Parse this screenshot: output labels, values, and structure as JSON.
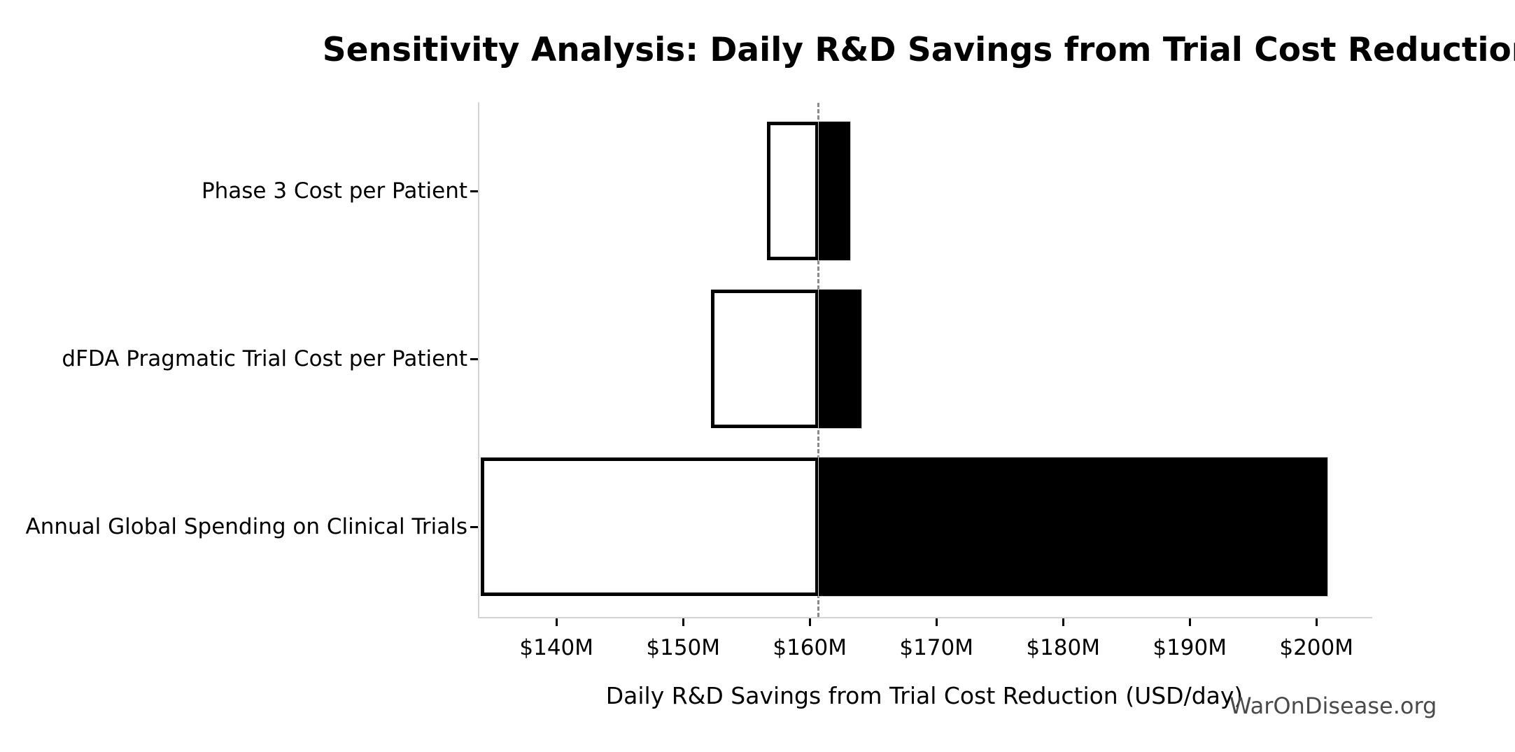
{
  "watermark": {
    "text": "WarOnDisease.org",
    "color": "#4a4a4a"
  },
  "chart_data": {
    "type": "bar",
    "variant": "tornado-sensitivity",
    "title": "Sensitivity Analysis: Daily R&D Savings from Trial Cost Reduction",
    "xlabel": "Daily R&D Savings from Trial Cost Reduction (USD/day)",
    "ylabel": "",
    "categories": [
      "Phase 3 Cost per Patient",
      "dFDA Pragmatic Trial Cost per Patient",
      "Annual Global Spending on Clinical Trials"
    ],
    "series": [
      {
        "name": "Phase 3 Cost per Patient",
        "low": 156.6,
        "high": 163.2
      },
      {
        "name": "dFDA Pragmatic Trial Cost per Patient",
        "low": 152.2,
        "high": 164.1
      },
      {
        "name": "Annual Global Spending on Clinical Trials",
        "low": 134.0,
        "high": 200.9
      }
    ],
    "baseline": 160.7,
    "units": "USD millions per day",
    "xticks": [
      140,
      150,
      160,
      170,
      180,
      190,
      200
    ],
    "xtick_labels": [
      "$140M",
      "$150M",
      "$160M",
      "$170M",
      "$180M",
      "$190M",
      "$200M"
    ],
    "xlim": [
      133.8,
      204.3
    ],
    "grid": false,
    "legend": "none",
    "colors": {
      "low_fill": "#ffffff",
      "high_fill": "#000000",
      "bar_edge": "#000000",
      "baseline_line": "#8a8a8a",
      "spine": "#d4d4d4"
    }
  }
}
